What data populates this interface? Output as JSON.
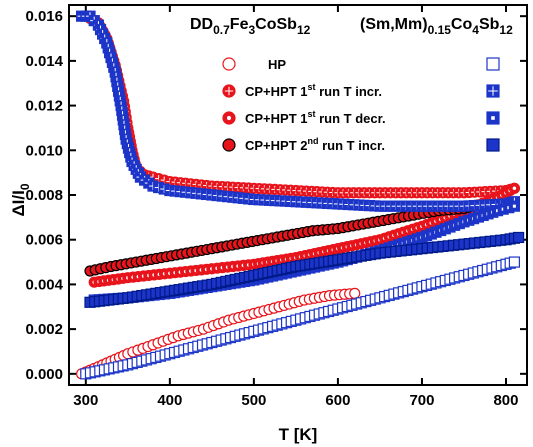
{
  "chart_data": {
    "type": "scatter",
    "xlabel": "T [K]",
    "ylabel": "ΔI/I",
    "ylabel_sub": "0",
    "xlim": [
      280,
      825
    ],
    "ylim": [
      -0.0005,
      0.0165
    ],
    "xticks": [
      300,
      400,
      500,
      600,
      700,
      800
    ],
    "yticks": [
      "0.000",
      "0.002",
      "0.004",
      "0.006",
      "0.008",
      "0.010",
      "0.012",
      "0.014",
      "0.016"
    ],
    "grid": false,
    "legend_position": "top-right",
    "headers": {
      "left": {
        "base": "DD",
        "sub1": "0.7",
        "mid": "Fe",
        "sub2": "3",
        "tail": "CoSb",
        "sub3": "12"
      },
      "right": {
        "base": "(Sm,Mm)",
        "sub1": "0.15",
        "mid": "Co",
        "sub2": "4",
        "tail": "Sb",
        "sub3": "12"
      }
    },
    "legend": [
      {
        "label": "HP",
        "sup": "",
        "rest": ""
      },
      {
        "label": "CP+HPT 1",
        "sup": "st",
        "rest": " run T incr."
      },
      {
        "label": "CP+HPT 1",
        "sup": "st",
        "rest": " run T decr."
      },
      {
        "label": "CP+HPT 2",
        "sup": "nd",
        "rest": " run T incr."
      }
    ],
    "series": [
      {
        "sample": "DD0.7Fe3CoSb12",
        "run": "HP",
        "color": "#e8141c",
        "marker": "open-circle",
        "x": [
          295,
          320,
          350,
          380,
          410,
          440,
          470,
          500,
          530,
          560,
          590,
          620
        ],
        "y": [
          0.0,
          0.0004,
          0.0009,
          0.0013,
          0.0017,
          0.002,
          0.0024,
          0.0027,
          0.003,
          0.0033,
          0.0035,
          0.0036
        ]
      },
      {
        "sample": "DD0.7Fe3CoSb12",
        "run": "CP+HPT 1st run T incr.",
        "color": "#e8141c",
        "marker": "crossed-circle",
        "x": [
          300,
          315,
          325,
          335,
          345,
          350,
          355,
          360,
          370,
          380,
          400,
          425,
          450,
          500,
          550,
          600,
          650,
          700,
          750,
          800,
          810
        ],
        "y": [
          0.016,
          0.0157,
          0.015,
          0.0138,
          0.0122,
          0.011,
          0.01,
          0.0092,
          0.0089,
          0.0088,
          0.0086,
          0.0085,
          0.0084,
          0.0083,
          0.0082,
          0.0081,
          0.0081,
          0.0081,
          0.0081,
          0.0082,
          0.0083
        ]
      },
      {
        "sample": "DD0.7Fe3CoSb12",
        "run": "CP+HPT 1st run T decr.",
        "color": "#e8141c",
        "marker": "dotted-circle",
        "x": [
          310,
          350,
          400,
          450,
          500,
          550,
          600,
          650,
          700,
          750,
          790,
          810
        ],
        "y": [
          0.0041,
          0.0043,
          0.0045,
          0.0047,
          0.0049,
          0.0052,
          0.0056,
          0.006,
          0.0066,
          0.0073,
          0.0079,
          0.0083
        ]
      },
      {
        "sample": "DD0.7Fe3CoSb12",
        "run": "CP+HPT 2nd run T incr.",
        "color": "#e8141c",
        "marker": "filled-circle",
        "x": [
          305,
          330,
          360,
          390,
          420,
          450,
          480,
          510,
          540,
          570,
          600,
          630,
          660,
          690,
          720,
          750,
          760
        ],
        "y": [
          0.0046,
          0.0048,
          0.005,
          0.0052,
          0.0054,
          0.0056,
          0.0058,
          0.006,
          0.0062,
          0.0064,
          0.0065,
          0.0067,
          0.0069,
          0.0071,
          0.0073,
          0.0074,
          0.0075
        ]
      },
      {
        "sample": "(Sm,Mm)0.15Co4Sb12",
        "run": "HP",
        "color": "#1c35c8",
        "marker": "open-square",
        "x": [
          300,
          350,
          400,
          450,
          500,
          550,
          600,
          650,
          700,
          750,
          800,
          810
        ],
        "y": [
          0.0,
          0.0004,
          0.0009,
          0.0014,
          0.0019,
          0.0024,
          0.0029,
          0.0034,
          0.0039,
          0.0044,
          0.0049,
          0.005
        ]
      },
      {
        "sample": "(Sm,Mm)0.15Co4Sb12",
        "run": "CP+HPT 1st run T incr.",
        "color": "#1c35c8",
        "marker": "crossed-square",
        "x": [
          295,
          305,
          315,
          325,
          335,
          342,
          348,
          355,
          365,
          380,
          400,
          450,
          500,
          550,
          600,
          650,
          700,
          750,
          800,
          810
        ],
        "y": [
          0.016,
          0.016,
          0.0156,
          0.0148,
          0.0135,
          0.012,
          0.0105,
          0.0095,
          0.0088,
          0.0084,
          0.0082,
          0.008,
          0.0078,
          0.0077,
          0.0076,
          0.0075,
          0.0075,
          0.0075,
          0.0076,
          0.0077
        ]
      },
      {
        "sample": "(Sm,Mm)0.15Co4Sb12",
        "run": "CP+HPT 1st run T decr.",
        "color": "#1c35c8",
        "marker": "dotted-square",
        "x": [
          310,
          350,
          400,
          450,
          500,
          550,
          600,
          650,
          700,
          750,
          790,
          810
        ],
        "y": [
          0.0033,
          0.0034,
          0.0036,
          0.0039,
          0.0042,
          0.0046,
          0.005,
          0.0055,
          0.0061,
          0.0068,
          0.0073,
          0.0075
        ]
      },
      {
        "sample": "(Sm,Mm)0.15Co4Sb12",
        "run": "CP+HPT 2nd run T incr.",
        "color": "#1c35c8",
        "marker": "filled-square",
        "x": [
          305,
          350,
          400,
          450,
          500,
          550,
          600,
          650,
          700,
          750,
          800,
          815
        ],
        "y": [
          0.0032,
          0.0034,
          0.0037,
          0.004,
          0.0044,
          0.0048,
          0.0051,
          0.0054,
          0.0056,
          0.0058,
          0.006,
          0.0061
        ]
      }
    ]
  }
}
